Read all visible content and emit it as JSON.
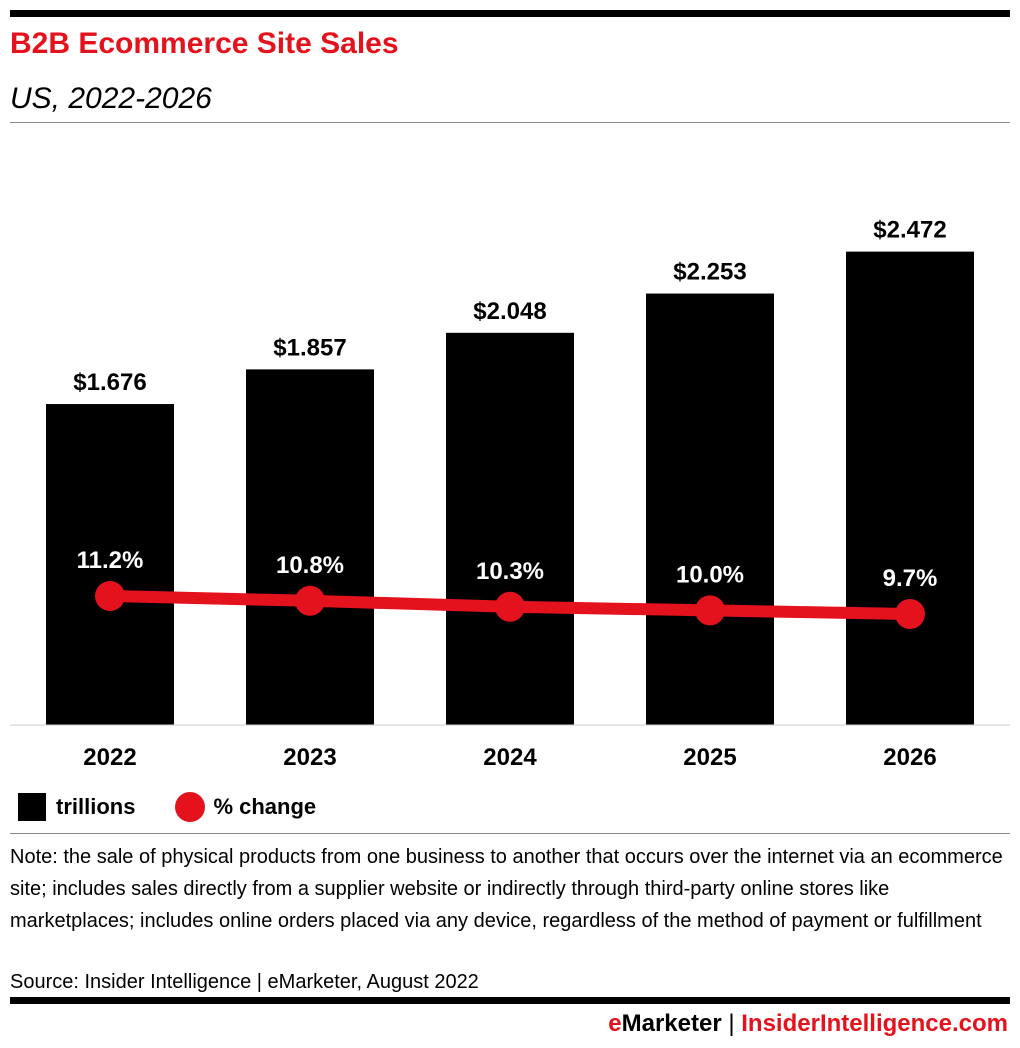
{
  "title": "B2B Ecommerce Site Sales",
  "subtitle": "US, 2022-2026",
  "chart_data": {
    "type": "bar+line",
    "categories": [
      "2022",
      "2023",
      "2024",
      "2025",
      "2026"
    ],
    "series": [
      {
        "name": "trillions",
        "type": "bar",
        "values": [
          1.676,
          1.857,
          2.048,
          2.253,
          2.472
        ],
        "labels": [
          "$1.676",
          "$1.857",
          "$2.048",
          "$2.253",
          "$2.472"
        ],
        "color": "#000000"
      },
      {
        "name": "% change",
        "type": "line",
        "values": [
          11.2,
          10.8,
          10.3,
          10.0,
          9.7
        ],
        "labels": [
          "11.2%",
          "10.8%",
          "10.3%",
          "10.0%",
          "9.7%"
        ],
        "color": "#e4121c"
      }
    ],
    "legend_position": "bottom-left",
    "grid": false
  },
  "legend": {
    "bars": "trillions",
    "line": "% change"
  },
  "note": "Note: the sale of physical products from one business to another that occurs over the internet via an ecommerce site; includes sales directly from a supplier website or indirectly through third-party online stores like marketplaces; includes online orders placed via any device, regardless of the method of payment or fulfillment",
  "source": "Source: Insider Intelligence | eMarketer, August 2022",
  "footer": {
    "e": "e",
    "marketer": "Marketer",
    "sep": "|",
    "ii": "InsiderIntelligence.com"
  }
}
